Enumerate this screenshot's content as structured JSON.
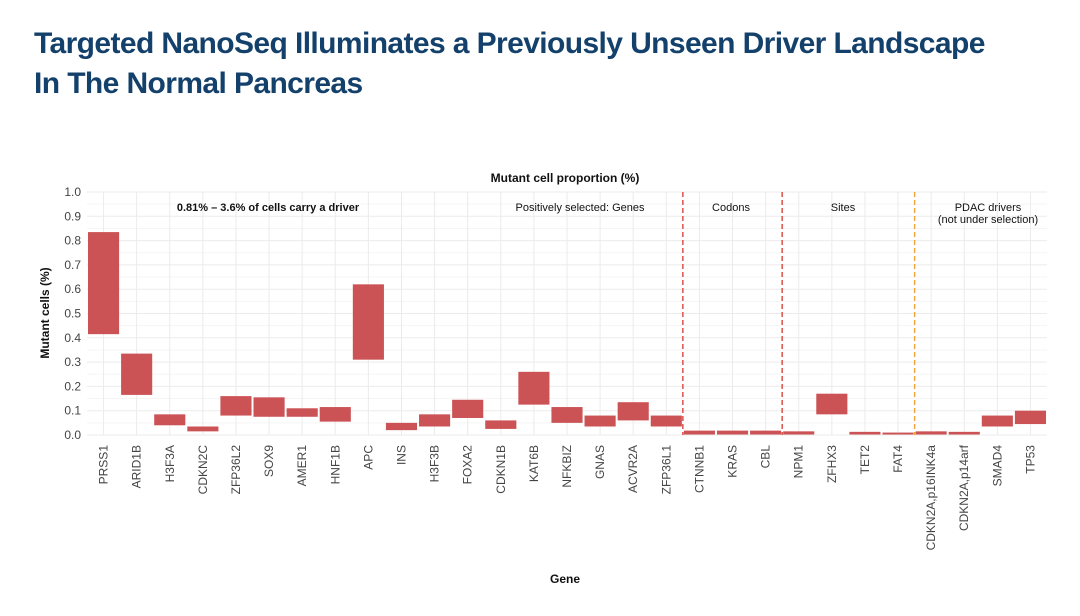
{
  "slide": {
    "title_line1": "Targeted NanoSeq Illuminates a Previously Unseen Driver Landscape",
    "title_line2": "In The Normal Pancreas"
  },
  "colors": {
    "title": "#14416b",
    "bar": "#cc5355",
    "grid": "#ebebeb",
    "red_divider": "#d9443d",
    "orange_divider": "#f2a33a"
  },
  "chart_data": {
    "type": "bar",
    "subtype": "floating-range",
    "title": "Mutant cell proportion (%)",
    "xlabel": "Gene",
    "ylabel": "Mutant cells (%)",
    "ylim": [
      0,
      1.0
    ],
    "yticks": [
      0.0,
      0.1,
      0.2,
      0.3,
      0.4,
      0.5,
      0.6,
      0.7,
      0.8,
      0.9,
      1.0
    ],
    "ytick_labels": [
      "0.0",
      "0.1",
      "0.2",
      "0.3",
      "0.4",
      "0.5",
      "0.6",
      "0.7",
      "0.8",
      "0.9",
      "1.0"
    ],
    "grid": true,
    "categories": [
      "PRSS1",
      "ARID1B",
      "H3F3A",
      "CDKN2C",
      "ZFP36L2",
      "SOX9",
      "AMER1",
      "HNF1B",
      "APC",
      "INS",
      "H3F3B",
      "FOXA2",
      "CDKN1B",
      "KAT6B",
      "NFKBIZ",
      "GNAS",
      "ACVR2A",
      "ZFP36L1",
      "CTNNB1",
      "KRAS",
      "CBL",
      "NPM1",
      "ZFHX3",
      "TET2",
      "FAT4",
      "CDKN2A,p16INK4a",
      "CDKN2A,p14arf",
      "SMAD4",
      "TP53"
    ],
    "lower": [
      0.415,
      0.165,
      0.04,
      0.015,
      0.08,
      0.075,
      0.075,
      0.055,
      0.31,
      0.02,
      0.035,
      0.07,
      0.025,
      0.125,
      0.05,
      0.035,
      0.06,
      0.035,
      0.002,
      0.002,
      0.002,
      0.002,
      0.085,
      0.002,
      0.002,
      0.002,
      0.002,
      0.035,
      0.045
    ],
    "upper": [
      0.835,
      0.335,
      0.085,
      0.035,
      0.16,
      0.155,
      0.11,
      0.115,
      0.62,
      0.05,
      0.085,
      0.145,
      0.06,
      0.26,
      0.115,
      0.08,
      0.135,
      0.08,
      0.018,
      0.018,
      0.018,
      0.015,
      0.17,
      0.013,
      0.01,
      0.015,
      0.013,
      0.08,
      0.1
    ],
    "annotations": {
      "driver_range": "0.81% – 3.6% of cells carry a driver",
      "group_genes": "Positively selected: Genes",
      "group_codons": "Codons",
      "group_sites": "Sites",
      "group_pdac_line1": "PDAC drivers",
      "group_pdac_line2": "(not under selection)"
    },
    "dividers": [
      {
        "after_category": "ZFP36L1",
        "style": "red-dashed"
      },
      {
        "after_category": "CBL",
        "style": "red-dashed"
      },
      {
        "after_category": "FAT4",
        "style": "orange-dashed"
      }
    ]
  }
}
